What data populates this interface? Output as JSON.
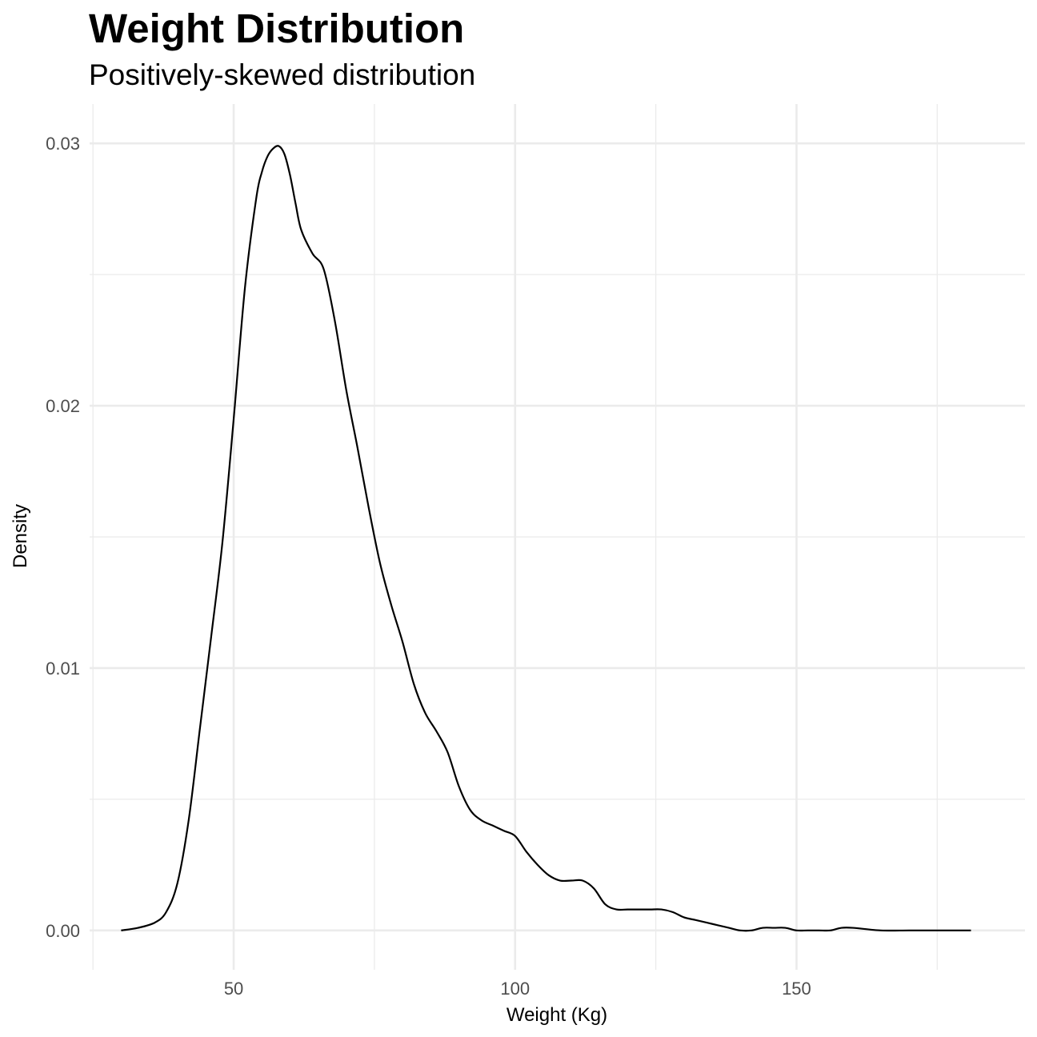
{
  "chart_data": {
    "type": "area",
    "title": "Weight Distribution",
    "subtitle": "Positively-skewed distribution",
    "xlabel": "Weight (Kg)",
    "ylabel": "Density",
    "xlim": [
      24.4,
      190.6
    ],
    "ylim": [
      -0.0015,
      0.0315
    ],
    "x_ticks": [
      50,
      100,
      150
    ],
    "x_tick_labels": [
      "50",
      "100",
      "150"
    ],
    "y_ticks": [
      0,
      0.01,
      0.02,
      0.03
    ],
    "y_tick_labels": [
      "0.00",
      "0.01",
      "0.02",
      "0.03"
    ],
    "x_minor_gridlines": [
      25,
      75,
      125,
      175
    ],
    "y_minor_gridlines": [
      0.005,
      0.015,
      0.025
    ],
    "grid": true,
    "legend": "none",
    "line_color": "#000000",
    "grid_color": "#ebebeb",
    "background": "#ffffff",
    "series": [
      {
        "x": [
          30,
          33,
          36,
          38,
          40,
          42,
          44,
          46,
          48,
          50,
          52,
          54,
          55,
          56,
          57,
          58,
          59,
          60,
          61,
          62,
          64,
          66,
          68,
          70,
          72,
          74,
          76,
          78,
          80,
          82,
          84,
          86,
          88,
          90,
          92,
          94,
          96,
          98,
          100,
          102,
          104,
          106,
          108,
          110,
          112,
          114,
          116,
          118,
          120,
          122,
          124,
          126,
          128,
          130,
          132,
          134,
          136,
          138,
          140,
          142,
          144,
          146,
          148,
          150,
          152,
          154,
          156,
          158,
          160,
          165,
          170,
          175,
          181
        ],
        "y": [
          0.0,
          0.0001,
          0.0003,
          0.0007,
          0.0018,
          0.0042,
          0.0077,
          0.0112,
          0.0148,
          0.0195,
          0.0245,
          0.0279,
          0.0289,
          0.0295,
          0.0298,
          0.0299,
          0.0296,
          0.0288,
          0.0277,
          0.0267,
          0.0258,
          0.0252,
          0.0232,
          0.0206,
          0.0184,
          0.0161,
          0.014,
          0.0124,
          0.011,
          0.0094,
          0.0083,
          0.0076,
          0.0068,
          0.0055,
          0.0046,
          0.0042,
          0.004,
          0.0038,
          0.0036,
          0.003,
          0.0025,
          0.0021,
          0.0019,
          0.0019,
          0.0019,
          0.0016,
          0.001,
          0.0008,
          0.0008,
          0.0008,
          0.0008,
          0.0008,
          0.0007,
          0.0005,
          0.0004,
          0.0003,
          0.0002,
          0.0001,
          0.0,
          0.0,
          0.0001,
          0.0001,
          0.0001,
          0.0,
          0.0,
          0.0,
          0.0,
          0.0001,
          0.0001,
          0.0,
          0.0,
          0.0,
          0.0
        ]
      }
    ]
  }
}
